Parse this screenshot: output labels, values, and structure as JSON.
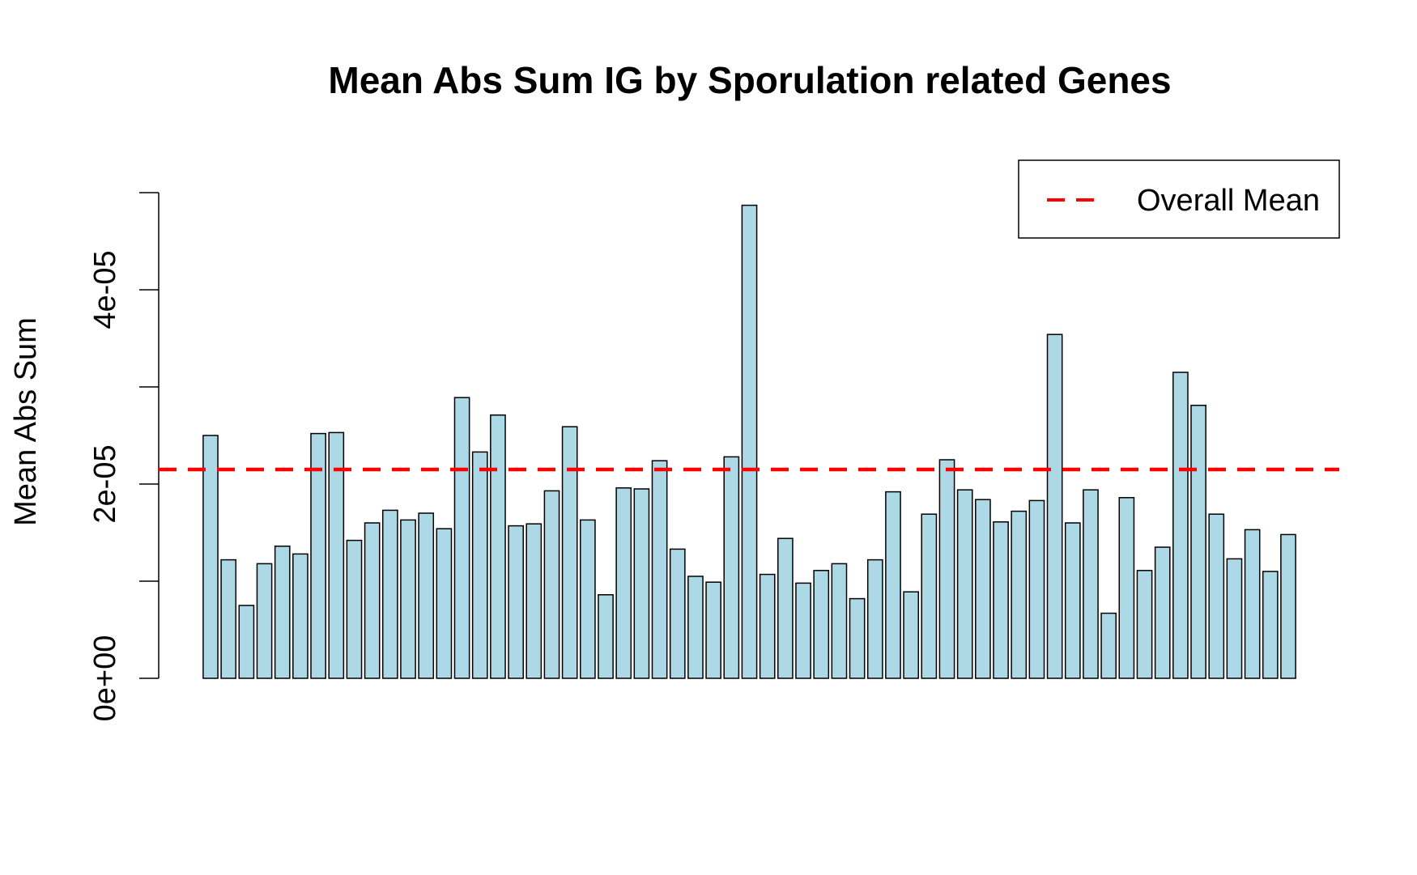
{
  "chart_data": {
    "type": "bar",
    "title": "Mean Abs Sum IG by Sporulation related Genes",
    "xlabel": "",
    "ylabel": "Mean Abs Sum",
    "ylim": [
      0,
      5e-05
    ],
    "yticks": [
      0,
      1e-05,
      2e-05,
      3e-05,
      4e-05,
      5e-05
    ],
    "ytick_labels": [
      "0e+00",
      "",
      "2e-05",
      "",
      "4e-05",
      ""
    ],
    "bar_color": "#ADD8E6",
    "bar_edge_color": "#000000",
    "values": [
      2.5e-05,
      1.22e-05,
      7.5e-06,
      1.18e-05,
      1.36e-05,
      1.28e-05,
      2.52e-05,
      2.53e-05,
      1.42e-05,
      1.6e-05,
      1.73e-05,
      1.63e-05,
      1.7e-05,
      1.54e-05,
      2.89e-05,
      2.33e-05,
      2.71e-05,
      1.57e-05,
      1.59e-05,
      1.93e-05,
      2.59e-05,
      1.63e-05,
      8.6e-06,
      1.96e-05,
      1.95e-05,
      2.24e-05,
      1.33e-05,
      1.05e-05,
      9.9e-06,
      2.28e-05,
      4.87e-05,
      1.07e-05,
      1.44e-05,
      9.8e-06,
      1.11e-05,
      1.18e-05,
      8.2e-06,
      1.22e-05,
      1.92e-05,
      8.9e-06,
      1.69e-05,
      2.25e-05,
      1.94e-05,
      1.84e-05,
      1.61e-05,
      1.72e-05,
      1.83e-05,
      3.54e-05,
      1.6e-05,
      1.94e-05,
      6.7e-06,
      1.86e-05,
      1.11e-05,
      1.35e-05,
      3.15e-05,
      2.81e-05,
      1.69e-05,
      1.23e-05,
      1.53e-05,
      1.1e-05,
      1.48e-05
    ],
    "reference_lines": [
      {
        "name": "Overall Mean",
        "value": 2.15e-05,
        "color": "#FF0000",
        "style": "dashed"
      }
    ],
    "legend": {
      "position": "top-right",
      "entries": [
        "Overall Mean"
      ]
    },
    "grid": false
  }
}
